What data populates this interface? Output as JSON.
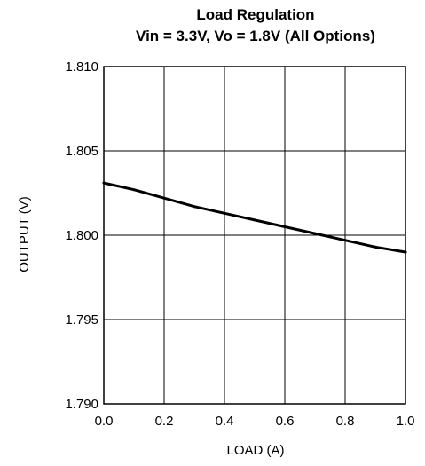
{
  "chart_data": {
    "type": "line",
    "title": "Load Regulation",
    "subtitle": "Vin = 3.3V, Vo = 1.8V (All Options)",
    "xlabel": "LOAD (A)",
    "ylabel": "OUTPUT (V)",
    "xlim": [
      0.0,
      1.0
    ],
    "ylim": [
      1.79,
      1.81
    ],
    "x_ticks": [
      "0.0",
      "0.2",
      "0.4",
      "0.6",
      "0.8",
      "1.0"
    ],
    "y_ticks": [
      "1.810",
      "1.805",
      "1.800",
      "1.795",
      "1.790"
    ],
    "grid": true,
    "series": [
      {
        "x": [
          0.0,
          0.1,
          0.2,
          0.3,
          0.4,
          0.5,
          0.6,
          0.7,
          0.8,
          0.9,
          1.0
        ],
        "y": [
          1.8031,
          1.8027,
          1.8022,
          1.8017,
          1.8013,
          1.8009,
          1.8005,
          1.8001,
          1.7997,
          1.7993,
          1.799
        ],
        "color": "#000000"
      }
    ]
  }
}
